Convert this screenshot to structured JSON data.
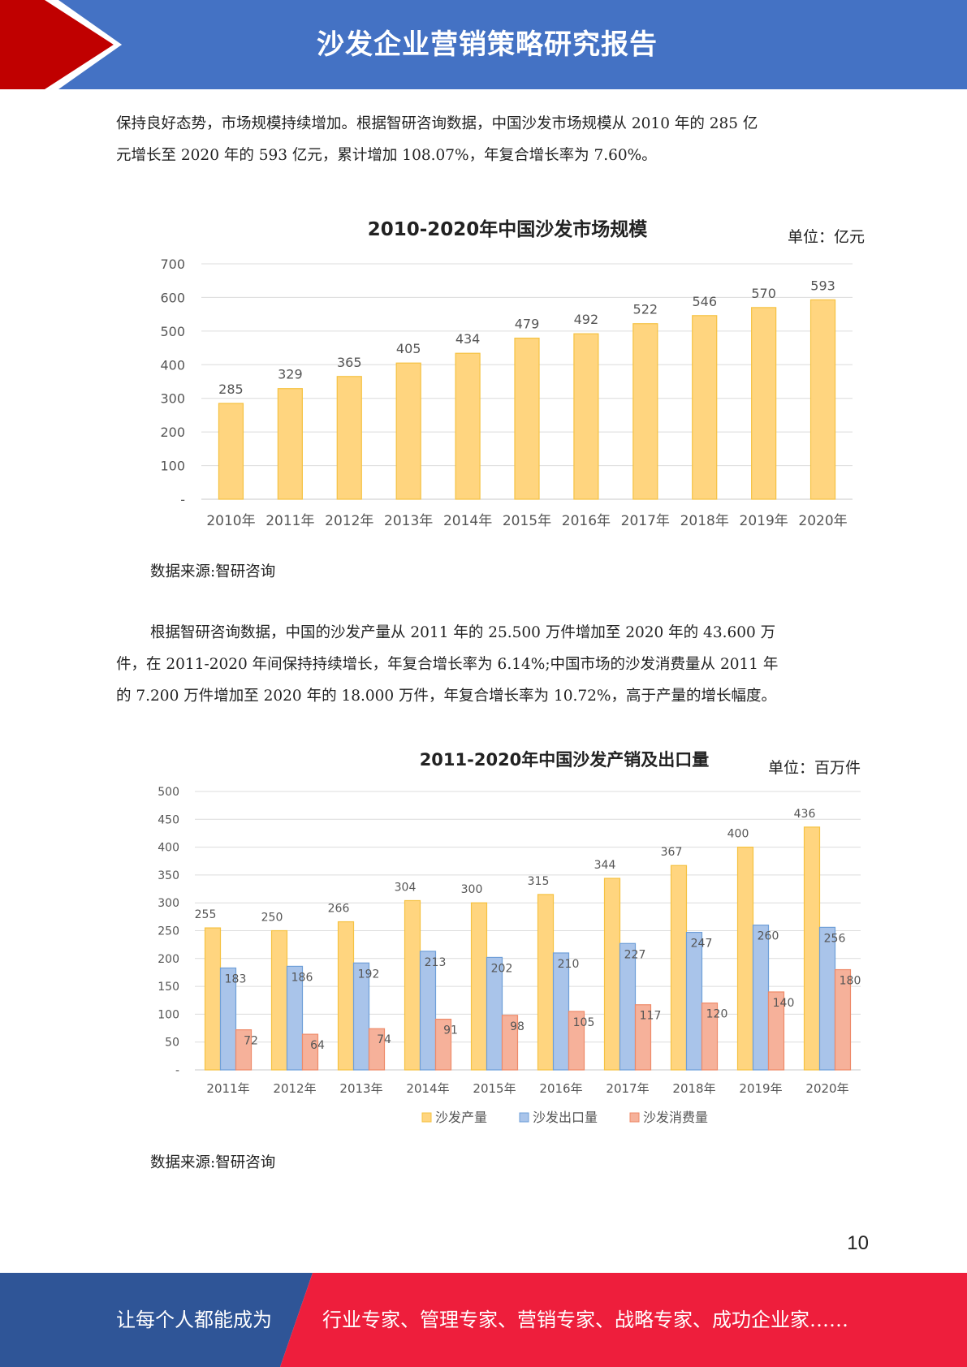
{
  "header": {
    "title": "沙发企业营销策略研究报告",
    "accent_color": "#c00000",
    "bar_color": "#4472c4"
  },
  "paragraphs": {
    "p1_line1": "保持良好态势，市场规模持续增加。根据智研咨询数据，中国沙发市场规模从 2010 年的 285 亿",
    "p1_line2": "元增长至 2020 年的 593 亿元，累计增加 108.07%，年复合增长率为 7.60%。",
    "p2_line1": "根据智研咨询数据，中国的沙发产量从 2011 年的 25.500 万件增加至 2020 年的 43.600 万",
    "p2_line2": "件，在 2011-2020 年间保持持续增长，年复合增长率为 6.14%;中国市场的沙发消费量从 2011 年",
    "p2_line3": "的 7.200 万件增加至 2020 年的 18.000 万件，年复合增长率为 10.72%，高于产量的增长幅度。"
  },
  "source1": "数据来源:智研咨询",
  "source2": "数据来源:智研咨询",
  "chart_data": [
    {
      "type": "bar",
      "title": "2010-2020年中国沙发市场规模",
      "unit": "单位：亿元",
      "categories": [
        "2010年",
        "2011年",
        "2012年",
        "2013年",
        "2014年",
        "2015年",
        "2016年",
        "2017年",
        "2018年",
        "2019年",
        "2020年"
      ],
      "values": [
        285,
        329,
        365,
        405,
        434,
        479,
        492,
        522,
        546,
        570,
        593
      ],
      "ylim": [
        0,
        700
      ],
      "yticks": [
        "-",
        "100",
        "200",
        "300",
        "400",
        "500",
        "600",
        "700"
      ],
      "grid": true,
      "bar_color": "#ffd57f",
      "bar_edge": "#f5c242"
    },
    {
      "type": "bar",
      "title": "2011-2020年中国沙发产销及出口量",
      "unit": "单位：百万件",
      "categories": [
        "2011年",
        "2012年",
        "2013年",
        "2014年",
        "2015年",
        "2016年",
        "2017年",
        "2018年",
        "2019年",
        "2020年"
      ],
      "series": [
        {
          "name": "沙发产量",
          "values": [
            255,
            250,
            266,
            304,
            300,
            315,
            344,
            367,
            400,
            436
          ],
          "color": "#ffd57f",
          "edge": "#f5c242"
        },
        {
          "name": "沙发出口量",
          "values": [
            183,
            186,
            192,
            213,
            202,
            210,
            227,
            247,
            260,
            256
          ],
          "color": "#a9c4ea",
          "edge": "#6f9fd8"
        },
        {
          "name": "沙发消费量",
          "values": [
            72,
            64,
            74,
            91,
            98,
            105,
            117,
            120,
            140,
            180
          ],
          "color": "#f6b19a",
          "edge": "#ee8a69"
        }
      ],
      "ylim": [
        0,
        500
      ],
      "yticks": [
        "-",
        "50",
        "100",
        "150",
        "200",
        "250",
        "300",
        "350",
        "400",
        "450",
        "500"
      ],
      "grid": true,
      "legend": "bottom"
    }
  ],
  "page_number": "10",
  "footer": {
    "left_text": "让每个人都能成为",
    "right_text": "行业专家、管理专家、营销专家、战略专家、成功企业家……",
    "left_color": "#2f5597",
    "right_color": "#ee1e3c"
  }
}
